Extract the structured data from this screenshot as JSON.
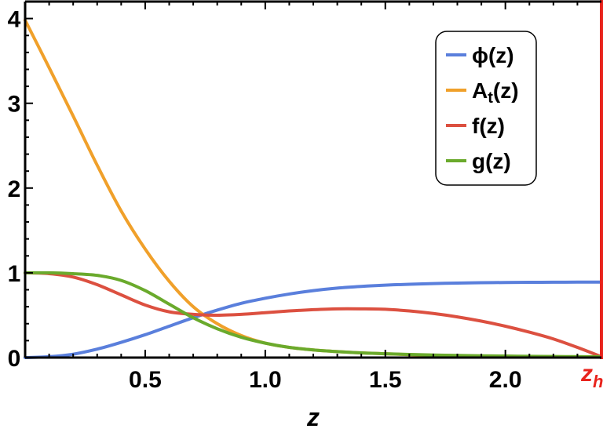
{
  "chart_data": {
    "type": "line",
    "xlabel": "z",
    "x_ticks": [
      "0.5",
      "1.0",
      "1.5",
      "2.0"
    ],
    "y_ticks": [
      "0",
      "1",
      "2",
      "3",
      "4"
    ],
    "xlim": [
      0,
      2.4
    ],
    "ylim": [
      0,
      4.2
    ],
    "horizon": {
      "label": "z",
      "subscript": "h",
      "x": 2.4,
      "color": "#e8231c"
    },
    "legend": {
      "position": "top-right"
    },
    "series": [
      {
        "name": "ϕ(z)",
        "color": "#5a7fdc",
        "x": [
          0,
          0.1,
          0.2,
          0.3,
          0.4,
          0.5,
          0.6,
          0.7,
          0.8,
          0.9,
          1.0,
          1.1,
          1.2,
          1.3,
          1.4,
          1.5,
          1.6,
          1.7,
          1.8,
          1.9,
          2.0,
          2.1,
          2.2,
          2.3,
          2.4
        ],
        "values": [
          0,
          0.01,
          0.04,
          0.1,
          0.18,
          0.27,
          0.37,
          0.47,
          0.56,
          0.64,
          0.7,
          0.75,
          0.79,
          0.82,
          0.84,
          0.855,
          0.865,
          0.873,
          0.879,
          0.883,
          0.886,
          0.888,
          0.889,
          0.89,
          0.89
        ]
      },
      {
        "name": "A",
        "name_sub": "t",
        "name_suffix": "(z)",
        "color": "#f0a02a",
        "x": [
          0,
          0.1,
          0.2,
          0.3,
          0.4,
          0.5,
          0.6,
          0.7,
          0.8,
          0.9,
          1.0,
          1.1,
          1.2,
          1.3,
          1.4,
          1.5,
          1.6,
          1.7,
          1.8,
          1.9,
          2.0,
          2.1,
          2.2,
          2.3,
          2.4
        ],
        "values": [
          3.98,
          3.42,
          2.85,
          2.27,
          1.73,
          1.28,
          0.9,
          0.6,
          0.4,
          0.26,
          0.17,
          0.12,
          0.09,
          0.07,
          0.055,
          0.045,
          0.035,
          0.028,
          0.022,
          0.018,
          0.015,
          0.012,
          0.01,
          0.008,
          0.005
        ]
      },
      {
        "name": "f(z)",
        "color": "#dc5040",
        "x": [
          0,
          0.1,
          0.2,
          0.3,
          0.4,
          0.5,
          0.6,
          0.7,
          0.8,
          0.9,
          1.0,
          1.1,
          1.2,
          1.3,
          1.4,
          1.5,
          1.6,
          1.7,
          1.8,
          1.9,
          2.0,
          2.1,
          2.2,
          2.3,
          2.4
        ],
        "values": [
          1.0,
          0.99,
          0.95,
          0.86,
          0.74,
          0.62,
          0.54,
          0.51,
          0.5,
          0.51,
          0.53,
          0.55,
          0.565,
          0.575,
          0.575,
          0.57,
          0.55,
          0.52,
          0.48,
          0.43,
          0.37,
          0.3,
          0.22,
          0.12,
          0.01
        ]
      },
      {
        "name": "g(z)",
        "color": "#6aaa2c",
        "x": [
          0,
          0.1,
          0.2,
          0.3,
          0.4,
          0.5,
          0.6,
          0.7,
          0.8,
          0.9,
          1.0,
          1.1,
          1.2,
          1.3,
          1.4,
          1.5,
          1.6,
          1.7,
          1.8,
          1.9,
          2.0,
          2.1,
          2.2,
          2.3,
          2.4
        ],
        "values": [
          1.0,
          1.0,
          0.99,
          0.97,
          0.91,
          0.79,
          0.63,
          0.47,
          0.34,
          0.24,
          0.17,
          0.12,
          0.09,
          0.07,
          0.055,
          0.045,
          0.037,
          0.03,
          0.025,
          0.021,
          0.018,
          0.015,
          0.013,
          0.011,
          0.01
        ]
      }
    ]
  }
}
